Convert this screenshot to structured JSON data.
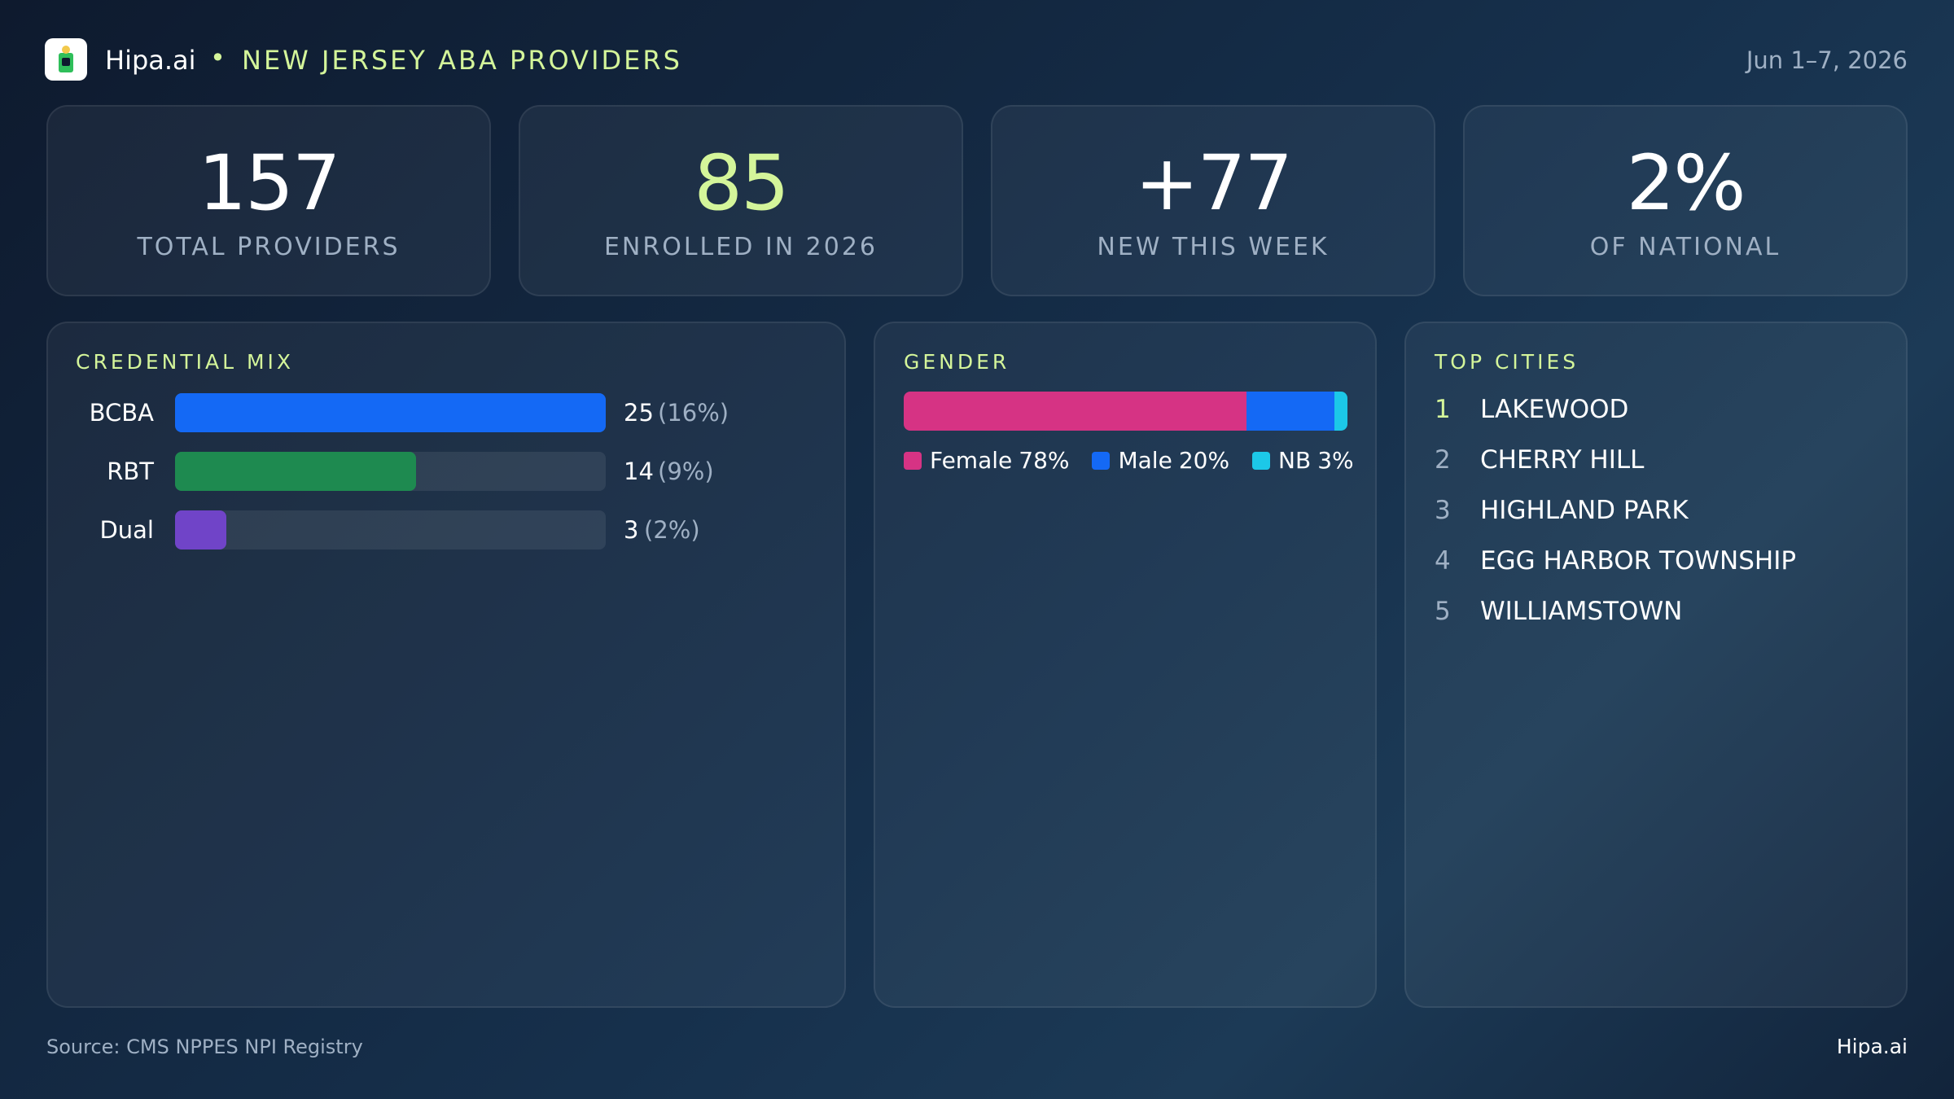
{
  "header": {
    "brand": "Hipa.ai",
    "title": "NEW JERSEY ABA PROVIDERS",
    "date": "Jun 1–7, 2026"
  },
  "stats": [
    {
      "value": "157",
      "label": "TOTAL PROVIDERS",
      "color": "#ffffff"
    },
    {
      "value": "85",
      "label": "ENROLLED IN 2026",
      "color": "#d4f59a"
    },
    {
      "value": "+77",
      "label": "NEW THIS WEEK",
      "color": "#ffffff"
    },
    {
      "value": "2%",
      "label": "OF NATIONAL",
      "color": "#ffffff"
    }
  ],
  "credential_mix": {
    "type": "bar",
    "title": "CREDENTIAL MIX",
    "categories": [
      "BCBA",
      "RBT",
      "Dual"
    ],
    "values": [
      25,
      14,
      3
    ],
    "share_labels": [
      "(16%)",
      "(9%)",
      "(2%)"
    ],
    "colors": [
      "#1469f5",
      "#1e8a50",
      "#7044c8"
    ]
  },
  "gender": {
    "type": "stacked-bar",
    "title": "GENDER",
    "series": [
      {
        "name": "Female",
        "value": 78,
        "value_label": "78%",
        "color": "#d63384"
      },
      {
        "name": "Male",
        "value": 20,
        "value_label": "20%",
        "color": "#1469f5"
      },
      {
        "name": "NB",
        "value": 3,
        "value_label": "3%",
        "color": "#1cc8e8"
      }
    ]
  },
  "top_cities": {
    "title": "TOP CITIES",
    "items": [
      {
        "rank": 1,
        "name": "LAKEWOOD"
      },
      {
        "rank": 2,
        "name": "CHERRY HILL"
      },
      {
        "rank": 3,
        "name": "HIGHLAND PARK"
      },
      {
        "rank": 4,
        "name": "EGG HARBOR TOWNSHIP"
      },
      {
        "rank": 5,
        "name": "WILLIAMSTOWN"
      }
    ]
  },
  "footer": {
    "source": "Source: CMS NPPES NPI Registry",
    "brand": "Hipa.ai"
  }
}
